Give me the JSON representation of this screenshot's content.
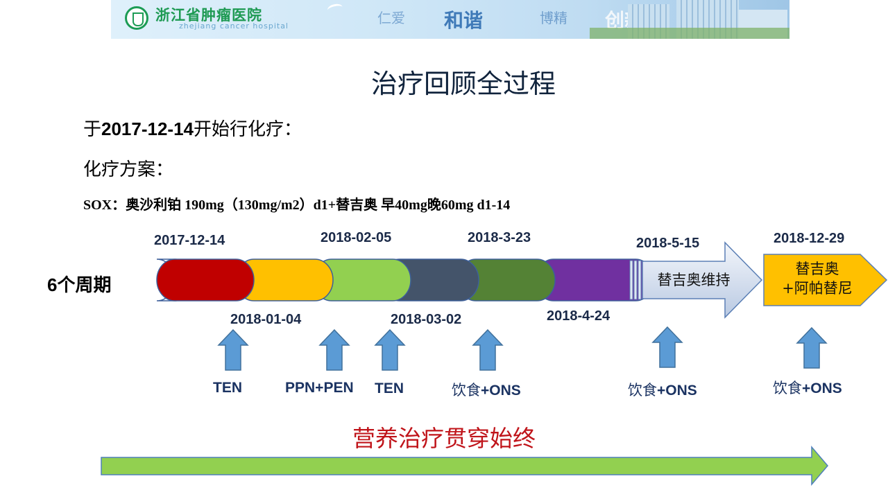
{
  "banner": {
    "hospital_name": "浙江省肿瘤医院",
    "hospital_name_en": "zhejiang cancer hospital",
    "motto": [
      "仁爱",
      "和谐",
      "博精",
      "创新"
    ]
  },
  "title": "治疗回顾全过程",
  "intro": {
    "prefix": "于",
    "date": "2017-12-14",
    "suffix": "开始行化疗："
  },
  "regimen_heading": "化疗方案：",
  "regimen": "SOX：奥沙利铂 190mg（130mg/m2）d1+替吉奥 早40mg晚60mg   d1-14",
  "cycles_label": {
    "num": "6",
    "text": "个周期"
  },
  "timeline": {
    "top_dates": [
      "2017-12-14",
      "2018-02-05",
      "2018-3-23",
      "2018-5-15",
      "2018-12-29"
    ],
    "bottom_dates": [
      "2018-01-04",
      "2018-03-02",
      "2018-4-24"
    ],
    "cycle_colors": [
      "#c00000",
      "#ffc000",
      "#92d050",
      "#44546a",
      "#548235",
      "#7030a0"
    ],
    "maintenance_label": "替吉奥维持",
    "final_label_line1": "替吉奥",
    "final_label_line2": "+阿帕替尼"
  },
  "nutrition": [
    {
      "label": "TEN"
    },
    {
      "label": "PPN+PEN"
    },
    {
      "label": "TEN"
    },
    {
      "label_cn": "饮食",
      "label_en": "+ONS"
    },
    {
      "label_cn": "饮食",
      "label_en": "+ONS"
    },
    {
      "label_cn": "饮食",
      "label_en": "+ONS"
    }
  ],
  "throughout_label": "营养治疗贯穿始终",
  "colors": {
    "title": "#10233c",
    "throughout": "#c0141a",
    "arrow_blue": "#5b9bd5",
    "arrow_green": "#92d050",
    "final_box": "#ffc000"
  }
}
